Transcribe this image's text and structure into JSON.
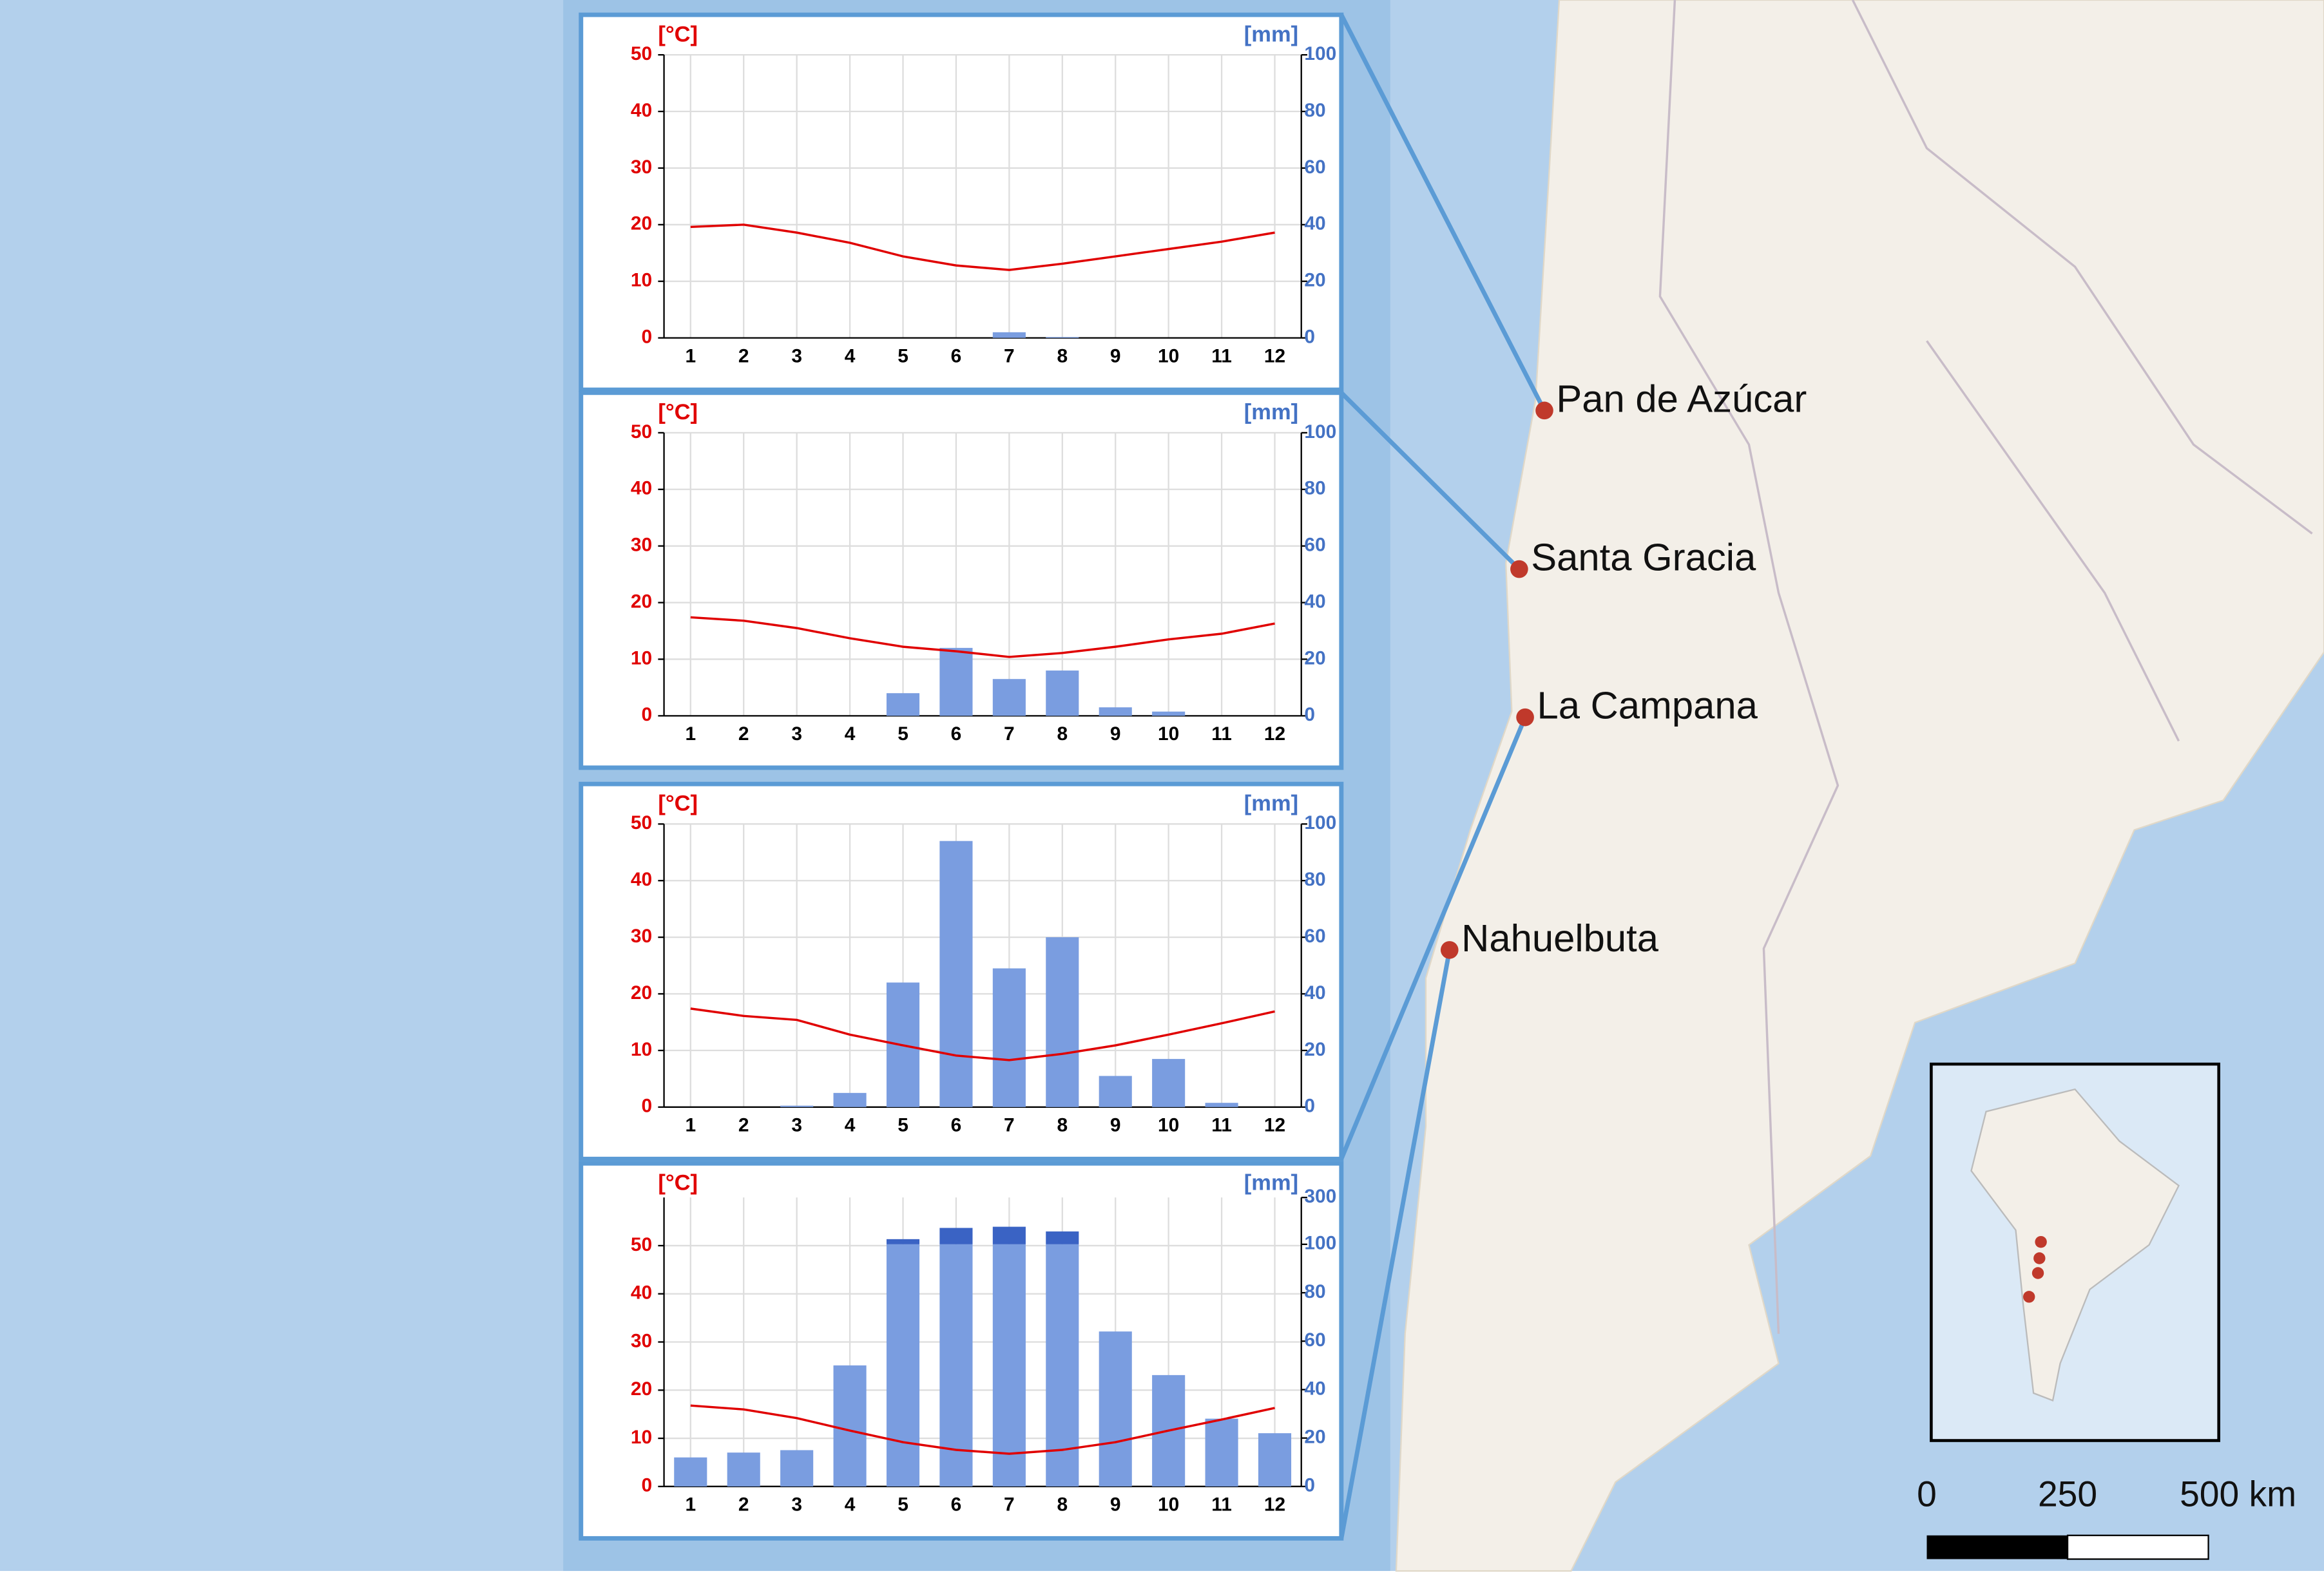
{
  "chart_data": [
    {
      "type": "combo",
      "y_label": "[°C]",
      "y2_label": "[mm]",
      "grid": true,
      "categories": [
        1,
        2,
        3,
        4,
        5,
        6,
        7,
        8,
        9,
        10,
        11,
        12
      ],
      "ylim": [
        0,
        50
      ],
      "yticks": [
        0,
        10,
        20,
        30,
        40,
        50
      ],
      "y2lim": [
        0,
        100
      ],
      "y2ticks": [
        0,
        20,
        40,
        60,
        80,
        100
      ],
      "series": [
        {
          "type": "line",
          "color": "#e00000",
          "values": [
            19.6,
            20,
            18.6,
            16.8,
            14.4,
            12.8,
            12,
            13.1,
            14.4,
            15.7,
            17,
            18.6
          ]
        },
        {
          "type": "bar",
          "axis": "y2",
          "color": "#7a9de0",
          "values": [
            0,
            0,
            0,
            0,
            0,
            0,
            2,
            0.3,
            0,
            0,
            0,
            0
          ]
        }
      ]
    },
    {
      "type": "combo",
      "y_label": "[°C]",
      "y2_label": "[mm]",
      "grid": true,
      "categories": [
        1,
        2,
        3,
        4,
        5,
        6,
        7,
        8,
        9,
        10,
        11,
        12
      ],
      "ylim": [
        0,
        50
      ],
      "yticks": [
        0,
        10,
        20,
        30,
        40,
        50
      ],
      "y2lim": [
        0,
        100
      ],
      "y2ticks": [
        0,
        20,
        40,
        60,
        80,
        100
      ],
      "series": [
        {
          "type": "line",
          "color": "#e00000",
          "values": [
            17.4,
            16.8,
            15.5,
            13.7,
            12.2,
            11.4,
            10.4,
            11.1,
            12.2,
            13.5,
            14.5,
            16.3
          ]
        },
        {
          "type": "bar",
          "axis": "y2",
          "color": "#7a9de0",
          "values": [
            0,
            0,
            0,
            0,
            8,
            24,
            13,
            16,
            3,
            1.5,
            0,
            0
          ]
        }
      ]
    },
    {
      "type": "combo",
      "y_label": "[°C]",
      "y2_label": "[mm]",
      "grid": true,
      "categories": [
        1,
        2,
        3,
        4,
        5,
        6,
        7,
        8,
        9,
        10,
        11,
        12
      ],
      "ylim": [
        0,
        50
      ],
      "yticks": [
        0,
        10,
        20,
        30,
        40,
        50
      ],
      "y2lim": [
        0,
        100
      ],
      "y2ticks": [
        0,
        20,
        40,
        60,
        80,
        100
      ],
      "series": [
        {
          "type": "line",
          "color": "#e00000",
          "values": [
            17.4,
            16.1,
            15.4,
            12.8,
            10.9,
            9.1,
            8.3,
            9.4,
            10.9,
            12.8,
            14.8,
            16.9
          ]
        },
        {
          "type": "bar",
          "axis": "y2",
          "color": "#7a9de0",
          "values": [
            0,
            0,
            0.5,
            5,
            44,
            94,
            49,
            60,
            11,
            17,
            1.5,
            0
          ]
        }
      ]
    },
    {
      "type": "combo",
      "y_label": "[°C]",
      "y2_label": "[mm]",
      "grid": true,
      "categories": [
        1,
        2,
        3,
        4,
        5,
        6,
        7,
        8,
        9,
        10,
        11,
        12
      ],
      "ylim": [
        0,
        60
      ],
      "yticks": [
        0,
        10,
        20,
        30,
        40,
        50
      ],
      "y2lim": [
        0,
        300
      ],
      "y2ticks": [
        0,
        20,
        40,
        60,
        80,
        100,
        300
      ],
      "y2_break": 100,
      "break_color": "#3a63c4",
      "series": [
        {
          "type": "line",
          "color": "#e00000",
          "values": [
            16.8,
            16,
            14.2,
            11.6,
            9.2,
            7.6,
            6.8,
            7.6,
            9.2,
            11.6,
            13.9,
            16.3
          ]
        },
        {
          "type": "bar",
          "axis": "y2",
          "color": "#7a9de0",
          "values": [
            12,
            14,
            15,
            50,
            122,
            170,
            175,
            155,
            64,
            46,
            28,
            22
          ]
        }
      ]
    }
  ],
  "map": {
    "sites": [
      "Pan de Azúcar",
      "Santa Gracia",
      "La Campana",
      "Nahuelbuta"
    ],
    "scale_labels": [
      "0",
      "250",
      "500 km"
    ]
  }
}
